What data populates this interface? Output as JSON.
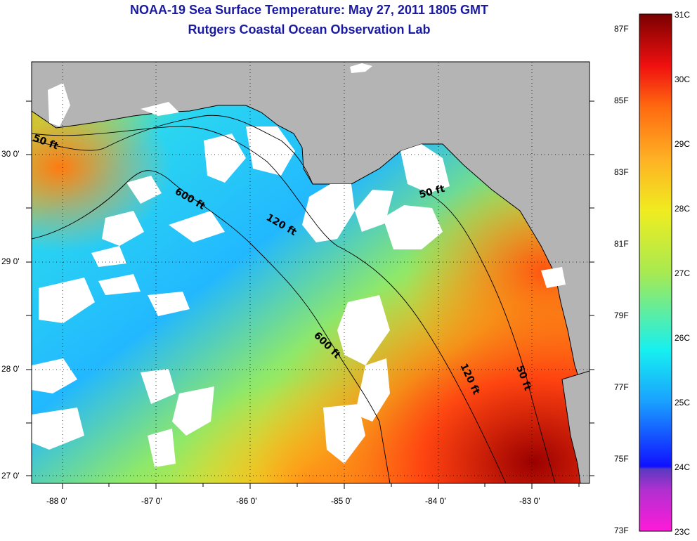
{
  "title": {
    "line1": "NOAA-19 Sea Surface Temperature:  May 27, 2011 1805 GMT",
    "line2": "Rutgers Coastal Ocean Observation Lab"
  },
  "map": {
    "lon_ticks": [
      "-88 0'",
      "-87 0'",
      "-86 0'",
      "-85 0'",
      "-84 0'",
      "-83 0'"
    ],
    "lat_ticks": [
      "30 0'",
      "29 0'",
      "28 0'",
      "27 0'"
    ],
    "land_color": "#b4b4b4",
    "cloud_color": "#ffffff",
    "contours": [
      {
        "label": "50 ft"
      },
      {
        "label": "600 ft"
      },
      {
        "label": "120 ft"
      },
      {
        "label": "50 ft"
      },
      {
        "label": "600 ft"
      },
      {
        "label": "120 ft"
      },
      {
        "label": "50 ft"
      }
    ]
  },
  "colorbar": {
    "celsius": [
      "31C",
      "30C",
      "29C",
      "28C",
      "27C",
      "26C",
      "25C",
      "24C",
      "23C"
    ],
    "fahrenheit": [
      "87F",
      "85F",
      "83F",
      "81F",
      "79F",
      "77F",
      "75F",
      "73F"
    ],
    "colors": [
      "#ff1ad9",
      "#7a33c8",
      "#1e1eff",
      "#1aa0ff",
      "#16f0f0",
      "#6cec7a",
      "#d8ee26",
      "#ffb024",
      "#ff6a10",
      "#e81010",
      "#8a0000"
    ]
  }
}
